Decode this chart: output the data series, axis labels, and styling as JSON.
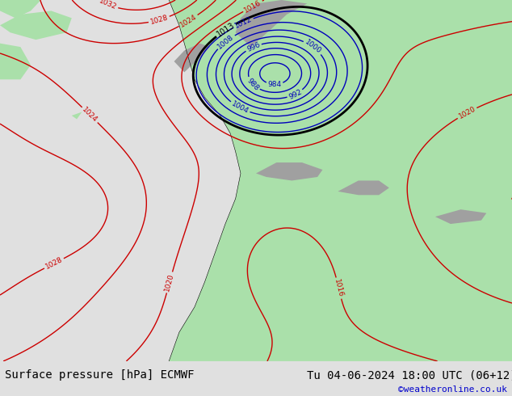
{
  "title_left": "Surface pressure [hPa] ECMWF",
  "title_right": "Tu 04-06-2024 18:00 UTC (06+12)",
  "watermark": "©weatheronline.co.uk",
  "watermark_color": "#0000cc",
  "land_color": "#aae0aa",
  "ocean_color": "#c8c8c8",
  "mountain_color": "#a0a0a0",
  "bottom_bar_color": "#e0e0e0",
  "title_fontsize": 10,
  "watermark_fontsize": 8,
  "figwidth": 6.34,
  "figheight": 4.9,
  "dpi": 100,
  "blue_levels": [
    984,
    988,
    992,
    996,
    1000,
    1004,
    1008,
    1012
  ],
  "black_levels": [
    1013
  ],
  "red_levels": [
    1016,
    1020,
    1024,
    1028,
    1032
  ]
}
